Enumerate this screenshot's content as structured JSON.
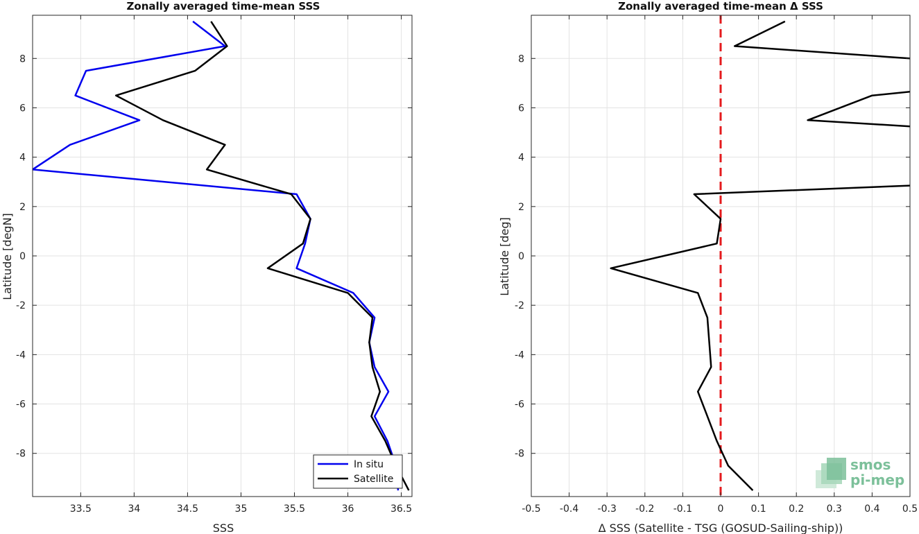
{
  "chart_data": [
    {
      "type": "line",
      "title": "Zonally averaged time-mean SSS",
      "xlabel": "SSS",
      "ylabel": "Latitude [degN]",
      "xlim": [
        33.05,
        36.6
      ],
      "ylim": [
        -9.75,
        9.75
      ],
      "xticks": [
        33.5,
        34,
        34.5,
        35,
        35.5,
        36,
        36.5
      ],
      "xtick_labels": [
        "33.5",
        "34",
        "34.5",
        "35",
        "35.5",
        "36",
        "36.5"
      ],
      "yticks": [
        8,
        6,
        4,
        2,
        0,
        -2,
        -4,
        -6,
        -8
      ],
      "ytick_labels": [
        "8",
        "6",
        "4",
        "2",
        "0",
        "-2",
        "-4",
        "-6",
        "-8"
      ],
      "grid": true,
      "legend": "bottom-right",
      "series": [
        {
          "name": "In situ",
          "color": "#0000ee",
          "points": [
            [
              34.55,
              9.5
            ],
            [
              34.85,
              8.5
            ],
            [
              33.55,
              7.5
            ],
            [
              33.45,
              6.5
            ],
            [
              34.05,
              5.5
            ],
            [
              33.4,
              4.5
            ],
            [
              33.05,
              3.5
            ],
            [
              35.52,
              2.5
            ],
            [
              35.65,
              1.5
            ],
            [
              35.6,
              0.5
            ],
            [
              35.52,
              -0.5
            ],
            [
              36.05,
              -1.5
            ],
            [
              36.25,
              -2.5
            ],
            [
              36.2,
              -3.5
            ],
            [
              36.25,
              -4.5
            ],
            [
              36.38,
              -5.5
            ],
            [
              36.25,
              -6.5
            ],
            [
              36.37,
              -7.5
            ],
            [
              36.45,
              -8.5
            ],
            [
              36.47,
              -9.5
            ]
          ]
        },
        {
          "name": "Satellite",
          "color": "#000000",
          "points": [
            [
              34.72,
              9.5
            ],
            [
              34.87,
              8.5
            ],
            [
              34.57,
              7.5
            ],
            [
              33.83,
              6.5
            ],
            [
              34.27,
              5.5
            ],
            [
              34.85,
              4.5
            ],
            [
              34.68,
              3.5
            ],
            [
              35.47,
              2.5
            ],
            [
              35.65,
              1.5
            ],
            [
              35.58,
              0.5
            ],
            [
              35.25,
              -0.5
            ],
            [
              36.0,
              -1.5
            ],
            [
              36.23,
              -2.5
            ],
            [
              36.2,
              -3.5
            ],
            [
              36.23,
              -4.5
            ],
            [
              36.3,
              -5.5
            ],
            [
              36.22,
              -6.5
            ],
            [
              36.35,
              -7.5
            ],
            [
              36.45,
              -8.5
            ],
            [
              36.57,
              -9.5
            ]
          ]
        }
      ]
    },
    {
      "type": "line",
      "title": "Zonally averaged time-mean Δ SSS",
      "xlabel": "Δ SSS (Satellite - TSG (GOSUD-Sailing-ship))",
      "ylabel": "Latitude [deg]",
      "xlim": [
        -0.5,
        0.5
      ],
      "ylim": [
        -9.75,
        9.75
      ],
      "xticks": [
        -0.5,
        -0.4,
        -0.3,
        -0.2,
        -0.1,
        0,
        0.1,
        0.2,
        0.3,
        0.4,
        0.5
      ],
      "xtick_labels": [
        "-0.5",
        "-0.4",
        "-0.3",
        "-0.2",
        "-0.1",
        "0",
        "0.1",
        "0.2",
        "0.3",
        "0.4",
        "0.5"
      ],
      "yticks": [
        8,
        6,
        4,
        2,
        0,
        -2,
        -4,
        -6,
        -8
      ],
      "ytick_labels": [
        "8",
        "6",
        "4",
        "2",
        "0",
        "-2",
        "-4",
        "-6",
        "-8"
      ],
      "grid": true,
      "reference_line": {
        "x": 0,
        "color": "#e41a1c",
        "style": "dashed"
      },
      "series": [
        {
          "color": "#000000",
          "points": [
            [
              0.17,
              9.5
            ],
            [
              0.037,
              8.5
            ],
            [
              0.5,
              8.0
            ]
          ]
        },
        {
          "color": "#000000",
          "points": [
            [
              0.5,
              6.65
            ],
            [
              0.4,
              6.5
            ],
            [
              0.23,
              5.5
            ],
            [
              0.5,
              5.25
            ]
          ]
        },
        {
          "color": "#000000",
          "points": [
            [
              0.5,
              2.85
            ],
            [
              -0.07,
              2.5
            ],
            [
              0.0,
              1.5
            ],
            [
              -0.01,
              0.5
            ],
            [
              -0.29,
              -0.5
            ],
            [
              -0.06,
              -1.5
            ],
            [
              -0.035,
              -2.5
            ],
            [
              -0.03,
              -3.5
            ],
            [
              -0.025,
              -4.5
            ],
            [
              -0.06,
              -5.5
            ],
            [
              -0.035,
              -6.5
            ],
            [
              -0.01,
              -7.5
            ],
            [
              0.02,
              -8.5
            ],
            [
              0.085,
              -9.5
            ]
          ]
        }
      ]
    }
  ],
  "logo": {
    "line1": "smos",
    "line2": "pi-mep",
    "color": "#7cc09a"
  }
}
